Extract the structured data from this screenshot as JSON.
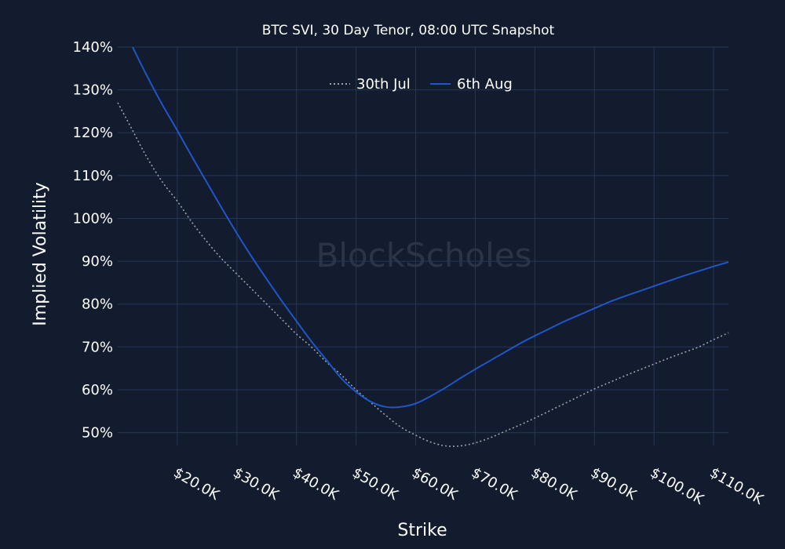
{
  "chart_data": {
    "type": "line",
    "title": "BTC SVI, 30 Day Tenor, 08:00 UTC Snapshot",
    "xlabel": "Strike",
    "ylabel": "Implied Volatility",
    "watermark": "BlockScholes",
    "xlim": [
      10000,
      112500
    ],
    "ylim": [
      47,
      140
    ],
    "x_ticks": [
      20000,
      30000,
      40000,
      50000,
      60000,
      70000,
      80000,
      90000,
      100000,
      110000
    ],
    "x_tick_labels": [
      "$20.0K",
      "$30.0K",
      "$40.0K",
      "$50.0K",
      "$60.0K",
      "$70.0K",
      "$80.0K",
      "$90.0K",
      "$100.0K",
      "$110.0K"
    ],
    "y_ticks": [
      50,
      60,
      70,
      80,
      90,
      100,
      110,
      120,
      130,
      140
    ],
    "y_tick_labels": [
      "50%",
      "60%",
      "70%",
      "80%",
      "90%",
      "100%",
      "110%",
      "120%",
      "130%",
      "140%"
    ],
    "grid": true,
    "legend_position": "top-center",
    "series": [
      {
        "name": "30th Jul",
        "color": "#9aa1ab",
        "dash": "dotted",
        "x": [
          10000,
          12500,
          15000,
          17500,
          20000,
          22500,
          25000,
          27500,
          30000,
          32500,
          35000,
          37500,
          40000,
          42500,
          45000,
          47500,
          50000,
          52500,
          55000,
          57500,
          60000,
          62500,
          65000,
          67500,
          70000,
          72500,
          75000,
          77500,
          80000,
          82500,
          85000,
          87500,
          90000,
          92500,
          95000,
          97500,
          100000,
          102500,
          105000,
          107500,
          110000,
          112500
        ],
        "y": [
          127,
          120.5,
          114,
          108.5,
          104,
          99,
          94.5,
          90.5,
          87,
          83.5,
          80,
          76.5,
          73,
          70,
          66.5,
          63.5,
          60,
          57,
          54,
          51.3,
          49.4,
          47.8,
          46.9,
          46.9,
          47.6,
          48.8,
          50.3,
          51.8,
          53.4,
          55.1,
          56.8,
          58.5,
          60.2,
          61.7,
          63.2,
          64.6,
          66.0,
          67.4,
          68.7,
          70.0,
          71.7,
          73.3
        ]
      },
      {
        "name": "6th Aug",
        "color": "#1f56c8",
        "dash": "solid",
        "x": [
          12500,
          15000,
          17500,
          20000,
          22500,
          25000,
          27500,
          30000,
          32500,
          35000,
          37500,
          40000,
          42500,
          45000,
          47500,
          50000,
          52500,
          55000,
          57500,
          60000,
          62500,
          65000,
          67500,
          70000,
          72500,
          75000,
          77500,
          80000,
          82500,
          85000,
          87500,
          90000,
          92500,
          95000,
          97500,
          100000,
          102500,
          105000,
          107500,
          110000,
          112500
        ],
        "y": [
          140,
          133,
          126.5,
          120.5,
          114.3,
          108.3,
          102.3,
          96.5,
          91,
          85.8,
          80.8,
          76,
          71.3,
          67,
          62.7,
          59.5,
          57.2,
          56.0,
          56.0,
          56.8,
          58.5,
          60.5,
          62.7,
          64.8,
          66.8,
          68.8,
          70.8,
          72.6,
          74.3,
          76.0,
          77.5,
          79.0,
          80.5,
          81.8,
          83.0,
          84.2,
          85.4,
          86.6,
          87.7,
          88.8,
          89.8
        ]
      }
    ]
  }
}
